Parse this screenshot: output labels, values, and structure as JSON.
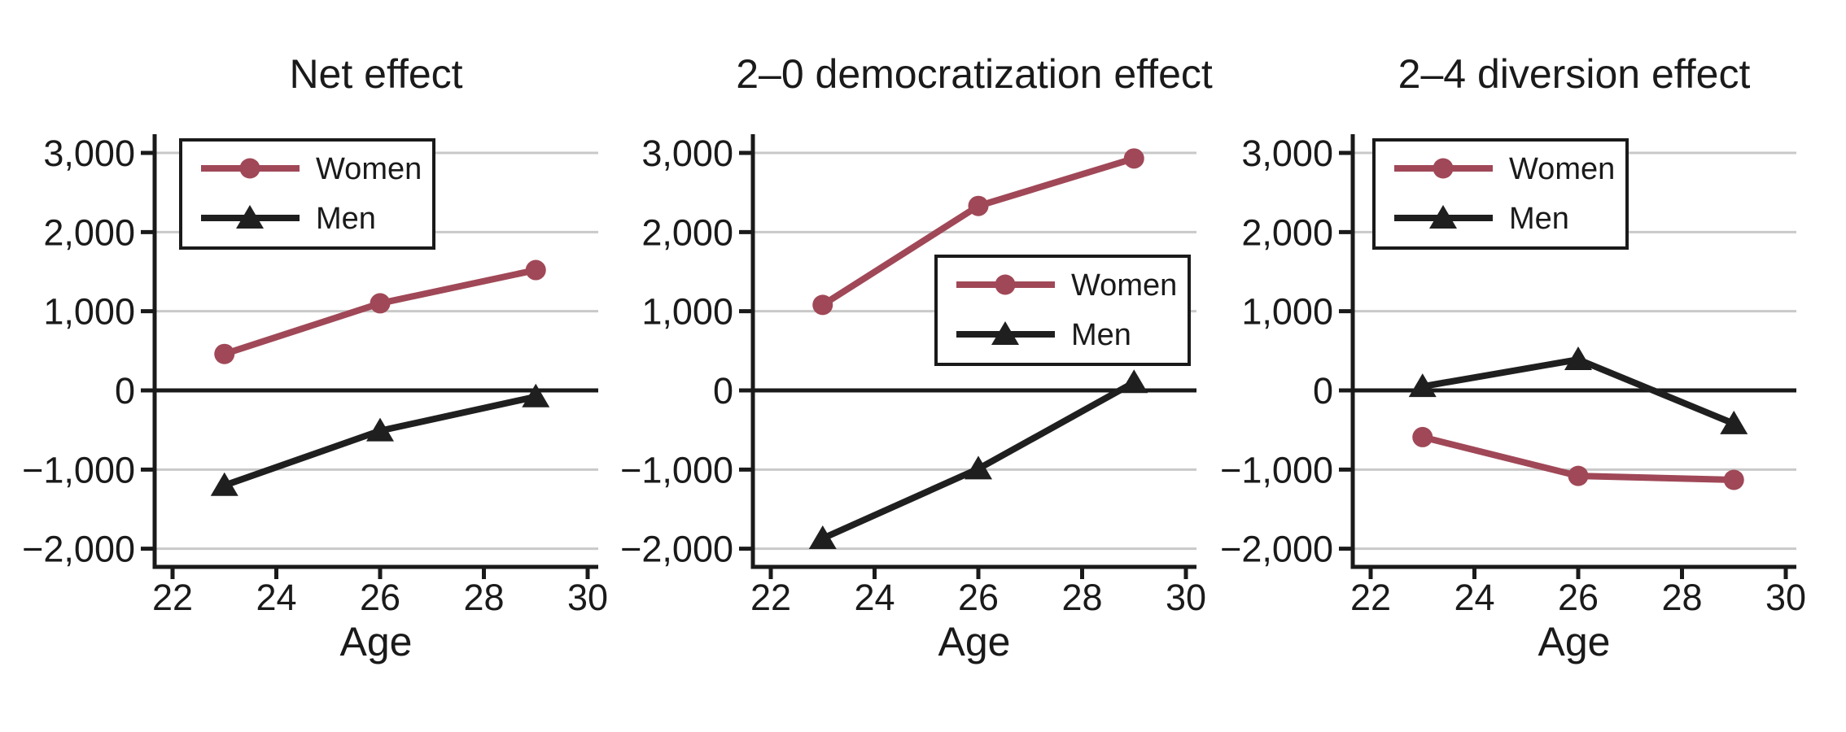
{
  "figure": {
    "background": "#ffffff",
    "text_color": "#1a1a1a",
    "gridline_color": "#c9c9c9",
    "axis_color": "#1a1a1a",
    "x_label": "Age",
    "x_ticks": [
      22,
      24,
      26,
      28,
      30
    ],
    "y_ticks": [
      3000,
      2000,
      1000,
      0,
      -1000,
      -2000
    ],
    "y_tick_labels": [
      "3,000",
      "2,000",
      "1,000",
      "0",
      "−1,000",
      "−2,000"
    ],
    "legend_entries": [
      "Women",
      "Men"
    ]
  },
  "chart_data": [
    {
      "type": "line",
      "title": "Net effect",
      "xlabel": "Age",
      "ylabel": "",
      "x": [
        23,
        26,
        29
      ],
      "x_ticks": [
        22,
        24,
        26,
        28,
        30
      ],
      "y_ticks": [
        3000,
        2000,
        1000,
        0,
        -1000,
        -2000
      ],
      "xlim": [
        21.6,
        30.2
      ],
      "ylim": [
        -2230,
        3240
      ],
      "grid": "horizontal",
      "zero_line": true,
      "legend_position": "top-left",
      "series": [
        {
          "name": "Women",
          "color": "#A04857",
          "marker": "circle",
          "values": [
            460,
            1100,
            1520
          ]
        },
        {
          "name": "Men",
          "color": "#1F1F1F",
          "marker": "triangle",
          "values": [
            -1200,
            -510,
            -80
          ]
        }
      ]
    },
    {
      "type": "line",
      "title": "2–0 democratization effect",
      "xlabel": "Age",
      "ylabel": "",
      "x": [
        23,
        26,
        29
      ],
      "x_ticks": [
        22,
        24,
        26,
        28,
        30
      ],
      "y_ticks": [
        3000,
        2000,
        1000,
        0,
        -1000,
        -2000
      ],
      "xlim": [
        21.6,
        30.2
      ],
      "ylim": [
        -2230,
        3240
      ],
      "grid": "horizontal",
      "zero_line": true,
      "legend_position": "middle-right",
      "series": [
        {
          "name": "Women",
          "color": "#A04857",
          "marker": "circle",
          "values": [
            1080,
            2330,
            2930
          ]
        },
        {
          "name": "Men",
          "color": "#1F1F1F",
          "marker": "triangle",
          "values": [
            -1870,
            -990,
            100
          ]
        }
      ]
    },
    {
      "type": "line",
      "title": "2–4 diversion effect",
      "xlabel": "Age",
      "ylabel": "",
      "x": [
        23,
        26,
        29
      ],
      "x_ticks": [
        22,
        24,
        26,
        28,
        30
      ],
      "y_ticks": [
        3000,
        2000,
        1000,
        0,
        -1000,
        -2000
      ],
      "xlim": [
        21.6,
        30.2
      ],
      "ylim": [
        -2230,
        3240
      ],
      "grid": "horizontal",
      "zero_line": true,
      "legend_position": "top-left",
      "series": [
        {
          "name": "Women",
          "color": "#A04857",
          "marker": "circle",
          "values": [
            -590,
            -1080,
            -1130
          ]
        },
        {
          "name": "Men",
          "color": "#1F1F1F",
          "marker": "triangle",
          "values": [
            50,
            390,
            -420
          ]
        }
      ]
    }
  ]
}
